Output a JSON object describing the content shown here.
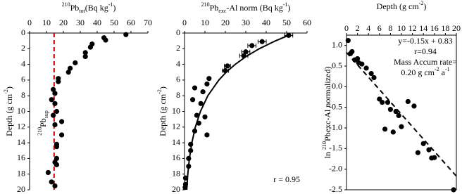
{
  "chart_data": [
    {
      "type": "scatter",
      "x_label": [
        {
          "text": "210",
          "shift": "super"
        },
        {
          "text": "Pb"
        },
        {
          "text": "tot",
          "shift": "sub"
        },
        {
          "text": "(Bq kg"
        },
        {
          "text": "-1",
          "shift": "super"
        },
        {
          "text": ")"
        }
      ],
      "y_label": [
        {
          "text": "Depth (g cm"
        },
        {
          "text": "-2",
          "shift": "super"
        },
        {
          "text": ")"
        }
      ],
      "xlim": [
        0,
        70
      ],
      "xticks": [
        0,
        10,
        20,
        30,
        40,
        50,
        60,
        70
      ],
      "ylim": [
        0,
        20
      ],
      "yticks": [
        0,
        2,
        4,
        6,
        8,
        10,
        12,
        14,
        16,
        18,
        20
      ],
      "y_inverted": true,
      "frame": "left-top",
      "series": [
        {
          "mode": "markers",
          "color": "#000000",
          "x": [
            57,
            44,
            45,
            37,
            36,
            33,
            33,
            27,
            24,
            23,
            17,
            17,
            14,
            15,
            13,
            15,
            16,
            14,
            19,
            15,
            19,
            16,
            16,
            16,
            15,
            16,
            11,
            13,
            15
          ],
          "values": [
            0.2,
            0.6,
            0.9,
            1.4,
            1.8,
            2.5,
            3,
            3.8,
            4.5,
            5,
            5.8,
            6.2,
            7.2,
            7.7,
            8.5,
            9,
            10,
            10.5,
            11.3,
            11.7,
            13,
            14.2,
            14.5,
            16,
            16.5,
            16.8,
            17.8,
            19,
            19.5
          ]
        }
      ],
      "reference_line": {
        "x": 14.5,
        "color": "#c00000",
        "dash": true,
        "label": [
          {
            "text": "210",
            "shift": "super"
          },
          {
            "text": "Pb"
          },
          {
            "text": "sup",
            "shift": "sub"
          }
        ]
      }
    },
    {
      "type": "scatter",
      "x_label": [
        {
          "text": "210",
          "shift": "super"
        },
        {
          "text": "Pb"
        },
        {
          "text": "exc",
          "shift": "sub"
        },
        {
          "text": "-Al norm (Bq kg"
        },
        {
          "text": "-1",
          "shift": "super"
        },
        {
          "text": ")"
        }
      ],
      "y_label": [
        {
          "text": "Depth (g cm"
        },
        {
          "text": "-2",
          "shift": "super"
        },
        {
          "text": ")"
        }
      ],
      "xlim": [
        0,
        60
      ],
      "xticks": [
        0,
        10,
        20,
        30,
        40,
        50,
        60
      ],
      "ylim": [
        0,
        20
      ],
      "yticks": [
        0,
        2,
        4,
        6,
        8,
        10,
        12,
        14,
        16,
        18,
        20
      ],
      "y_inverted": true,
      "frame": "left-top",
      "annotation": [
        {
          "text": "r = 0.95"
        }
      ],
      "series": [
        {
          "mode": "markers",
          "color": "#000000",
          "x": [
            51,
            38,
            33,
            30,
            29,
            21,
            20,
            12,
            11,
            5,
            9,
            4,
            8,
            6,
            10,
            7,
            5,
            11,
            3,
            3,
            2,
            2,
            0.5,
            0.5,
            0.3
          ],
          "xerr": [
            2,
            2,
            2,
            2,
            2,
            1.5,
            1.5,
            null,
            null,
            null,
            null,
            null,
            null,
            null,
            null,
            null,
            null,
            null,
            null,
            null,
            null,
            null,
            null,
            null,
            null
          ],
          "values": [
            0.3,
            1.1,
            1.6,
            2.4,
            2.9,
            4.2,
            4.8,
            5.8,
            6.5,
            7,
            7.5,
            8.5,
            9,
            10.5,
            10.7,
            11.5,
            12.5,
            13,
            14.2,
            15,
            16,
            17,
            18.5,
            19.3,
            19.7
          ]
        },
        {
          "mode": "line",
          "color": "#000000",
          "x": [
            50.9,
            44.5,
            36.6,
            30.1,
            24.8,
            20.4,
            16.8,
            11.4,
            7.8,
            5.3,
            3.6,
            2.4,
            1.6,
            1.1
          ],
          "values": [
            0.3,
            1,
            2,
            3,
            4,
            5,
            6,
            8,
            10,
            12,
            14,
            16,
            18,
            20
          ]
        }
      ]
    },
    {
      "type": "scatter",
      "x_label": [
        {
          "text": "Depth (g cm"
        },
        {
          "text": "-2",
          "shift": "super"
        },
        {
          "text": ")"
        }
      ],
      "y_label": [
        {
          "text": "ln "
        },
        {
          "text": "210",
          "shift": "super"
        },
        {
          "text": "Pbexc-Al normalized)"
        }
      ],
      "xlim": [
        0,
        20
      ],
      "xticks": [
        0,
        2,
        4,
        6,
        8,
        10,
        12,
        14,
        16,
        18,
        20
      ],
      "ylim": [
        -2.5,
        1.25
      ],
      "yticks": [
        -2.5,
        {
          "value": -2,
          "label": "-2.0"
        },
        -1.5,
        {
          "value": -1,
          "label": "-1.0"
        },
        -0.5,
        {
          "value": 0,
          "label": "0.0"
        },
        0.5,
        {
          "value": 1,
          "label": "1.0"
        }
      ],
      "y_inverted": false,
      "frame": "box",
      "annotation_lines": [
        [
          {
            "text": "y=-0.15x + 0.83"
          }
        ],
        [
          {
            "text": "r=0.94"
          }
        ],
        [
          {
            "text": "Mass Accum rate="
          }
        ],
        [
          {
            "text": "0.20 g cm"
          },
          {
            "text": "-2",
            "shift": "super"
          },
          {
            "text": " a"
          },
          {
            "text": "-1",
            "shift": "super"
          }
        ]
      ],
      "series": [
        {
          "mode": "markers",
          "color": "#000000",
          "x": [
            0.3,
            0.7,
            1,
            1.5,
            2,
            2.2,
            2.8,
            3.6,
            4.5,
            5,
            6,
            6.5,
            7,
            7.5,
            8,
            8.5,
            9,
            9.5,
            10,
            11.2,
            12.3,
            13,
            14,
            15,
            15.5,
            16,
            19.5
          ],
          "values": [
            1.12,
            0.8,
            0.85,
            0.65,
            0.68,
            0.58,
            0.55,
            0.45,
            0.32,
            0.22,
            -0.3,
            -0.38,
            -1.03,
            -0.38,
            -0.55,
            -1.1,
            -0.6,
            -0.7,
            -0.97,
            -0.36,
            -0.47,
            -1.6,
            -1.38,
            -1.53,
            -1.73,
            -1.72,
            -2.5
          ]
        },
        {
          "mode": "line",
          "dash": true,
          "color": "#000000",
          "x": [
            0,
            20
          ],
          "values": [
            0.83,
            -2.17
          ]
        }
      ]
    }
  ]
}
